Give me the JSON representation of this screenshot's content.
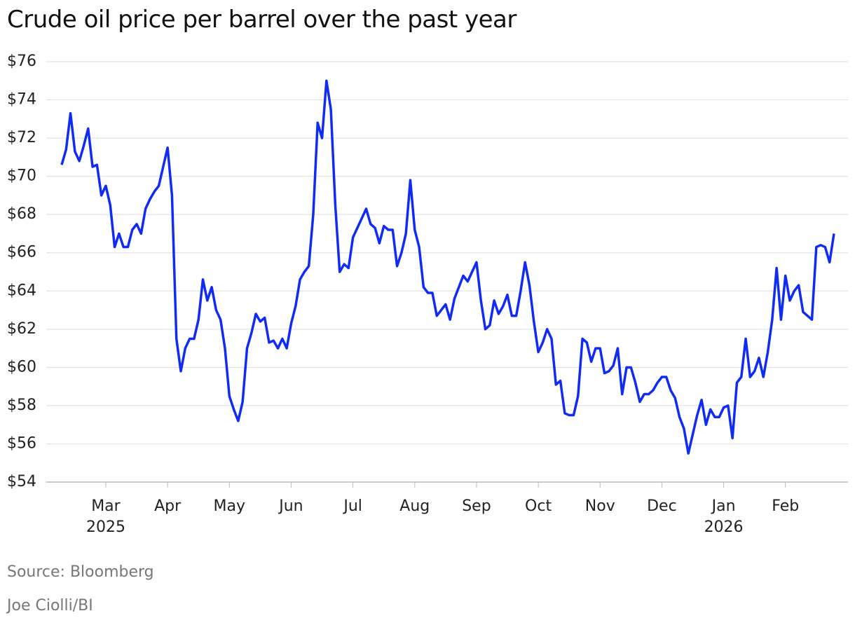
{
  "chart_data": {
    "type": "line",
    "title": "Crude oil price per barrel over the past year",
    "source": "Source: Bloomberg",
    "credit": "Joe Ciolli/BI",
    "color": "#0f2bf5",
    "grid": true,
    "categories": [
      null,
      null,
      null,
      null,
      null,
      null,
      null,
      null,
      null,
      null,
      "Mar\n2025",
      null,
      null,
      null,
      null,
      null,
      null,
      null,
      null,
      null,
      null,
      null,
      null,
      null,
      "Apr",
      null,
      null,
      null,
      null,
      null,
      null,
      null,
      null,
      null,
      null,
      null,
      null,
      null,
      "May",
      null,
      null,
      null,
      null,
      null,
      null,
      null,
      null,
      null,
      null,
      null,
      null,
      null,
      "Jun",
      null,
      null,
      null,
      null,
      null,
      null,
      null,
      null,
      null,
      null,
      null,
      null,
      null,
      "Jul",
      null,
      null,
      null,
      null,
      null,
      null,
      null,
      null,
      null,
      null,
      null,
      null,
      null,
      "Aug",
      null,
      null,
      null,
      null,
      null,
      null,
      null,
      null,
      null,
      null,
      null,
      null,
      null,
      "Sep",
      null,
      null,
      null,
      null,
      null,
      null,
      null,
      null,
      null,
      null,
      null,
      null,
      null,
      "Oct",
      null,
      null,
      null,
      null,
      null,
      null,
      null,
      null,
      null,
      null,
      null,
      null,
      null,
      "Nov",
      null,
      null,
      null,
      null,
      null,
      null,
      null,
      null,
      null,
      null,
      null,
      null,
      null,
      "Dec",
      null,
      null,
      null,
      null,
      null,
      null,
      null,
      null,
      null,
      null,
      null,
      null,
      null,
      "Jan\n2026",
      null,
      null,
      null,
      null,
      null,
      null,
      null,
      null,
      null,
      null,
      null,
      null,
      null,
      "Feb",
      null,
      null,
      null,
      null,
      null,
      null,
      null,
      null,
      null,
      null,
      null
    ],
    "values": [
      70.6,
      71.4,
      73.3,
      71.3,
      70.8,
      71.6,
      72.5,
      70.5,
      70.6,
      69.0,
      69.5,
      68.5,
      66.3,
      67.0,
      66.3,
      66.3,
      67.2,
      67.5,
      67.0,
      68.3,
      68.8,
      69.2,
      69.5,
      70.5,
      71.5,
      69.0,
      61.5,
      59.8,
      61.0,
      61.5,
      61.5,
      62.5,
      64.6,
      63.5,
      64.2,
      63.0,
      62.5,
      61.0,
      58.5,
      57.8,
      57.2,
      58.2,
      61.0,
      61.8,
      62.8,
      62.4,
      62.6,
      61.3,
      61.4,
      61.0,
      61.5,
      61.0,
      62.3,
      63.2,
      64.6,
      65.0,
      65.3,
      68.0,
      72.8,
      72.0,
      75.0,
      73.5,
      68.5,
      65.0,
      65.4,
      65.2,
      66.8,
      67.3,
      67.8,
      68.3,
      67.5,
      67.3,
      66.5,
      67.4,
      67.2,
      67.2,
      65.3,
      66.0,
      67.0,
      69.8,
      67.2,
      66.3,
      64.2,
      63.9,
      63.9,
      62.7,
      63.0,
      63.3,
      62.5,
      63.6,
      64.2,
      64.8,
      64.5,
      65.0,
      65.5,
      63.5,
      62.0,
      62.2,
      63.5,
      62.8,
      63.2,
      63.8,
      62.7,
      62.7,
      64.0,
      65.5,
      64.3,
      62.4,
      60.8,
      61.3,
      62.0,
      61.5,
      59.1,
      59.3,
      57.6,
      57.5,
      57.5,
      58.5,
      61.5,
      61.3,
      60.3,
      61.0,
      61.0,
      59.7,
      59.8,
      60.1,
      61.0,
      58.6,
      60.0,
      60.0,
      59.2,
      58.2,
      58.6,
      58.6,
      58.8,
      59.2,
      59.5,
      59.5,
      58.8,
      58.4,
      57.4,
      56.8,
      55.5,
      56.5,
      57.5,
      58.3,
      57.0,
      57.8,
      57.4,
      57.4,
      57.9,
      58.0,
      56.3,
      59.2,
      59.5,
      61.5,
      59.5,
      59.8,
      60.5,
      59.5,
      60.8,
      62.5,
      65.2,
      62.5,
      64.8,
      63.5,
      64.0,
      64.3,
      62.9,
      62.7,
      62.5,
      66.3,
      66.4,
      66.3,
      65.5,
      67.0
    ],
    "ylim": [
      54,
      76
    ],
    "yticks": [
      {
        "value": 54,
        "label": "$54"
      },
      {
        "value": 56,
        "label": "$56"
      },
      {
        "value": 58,
        "label": "$58"
      },
      {
        "value": 60,
        "label": "$60"
      },
      {
        "value": 62,
        "label": "$62"
      },
      {
        "value": 64,
        "label": "$64"
      },
      {
        "value": 66,
        "label": "$66"
      },
      {
        "value": 68,
        "label": "$68"
      },
      {
        "value": 70,
        "label": "$70"
      },
      {
        "value": 72,
        "label": "$72"
      },
      {
        "value": 74,
        "label": "$74"
      },
      {
        "value": 76,
        "label": "$76"
      }
    ]
  }
}
